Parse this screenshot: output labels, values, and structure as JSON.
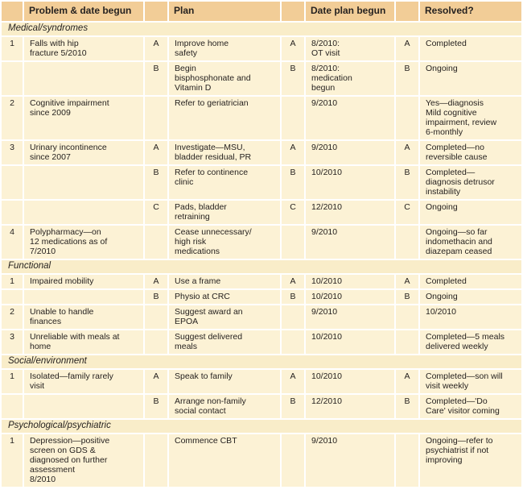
{
  "colors": {
    "header_bg": "#f2cd97",
    "row_bg": "#fcf2d5",
    "section_bg": "#f9edc9",
    "separator": "#ffffff",
    "text": "#262220"
  },
  "table": {
    "headers": {
      "num": "",
      "problem": "Problem & date begun",
      "plan_letter": "",
      "plan": "Plan",
      "date_letter": "",
      "date": "Date plan begun",
      "resolved_letter": "",
      "resolved": "Resolved?"
    },
    "sections": [
      {
        "label": "Medical/syndromes",
        "rows": [
          {
            "num": "1",
            "problem": "Falls with hip\nfracture 5/2010",
            "plan_letter": "A",
            "plan": "Improve home\nsafety",
            "date_letter": "A",
            "date": "8/2010:\nOT visit",
            "resolved_letter": "A",
            "resolved": "Completed"
          },
          {
            "num": "",
            "problem": "",
            "plan_letter": "B",
            "plan": "Begin\nbisphosphonate and\nVitamin D",
            "date_letter": "B",
            "date": "8/2010:\nmedication\nbegun",
            "resolved_letter": "B",
            "resolved": "Ongoing"
          },
          {
            "num": "2",
            "problem": "Cognitive impairment\nsince 2009",
            "plan_letter": "",
            "plan": "Refer to geriatrician",
            "date_letter": "",
            "date": "9/2010",
            "resolved_letter": "",
            "resolved": "Yes—diagnosis\nMild cognitive\nimpairment, review\n6-monthly"
          },
          {
            "num": "3",
            "problem": "Urinary incontinence\nsince 2007",
            "plan_letter": "A",
            "plan": "Investigate—MSU,\nbladder residual, PR",
            "date_letter": "A",
            "date": "9/2010",
            "resolved_letter": "A",
            "resolved": "Completed—no\nreversible cause"
          },
          {
            "num": "",
            "problem": "",
            "plan_letter": "B",
            "plan": "Refer to continence\nclinic",
            "date_letter": "B",
            "date": "10/2010",
            "resolved_letter": "B",
            "resolved": "Completed—\ndiagnosis detrusor\ninstability"
          },
          {
            "num": "",
            "problem": "",
            "plan_letter": "C",
            "plan": "Pads, bladder\nretraining",
            "date_letter": "C",
            "date": "12/2010",
            "resolved_letter": "C",
            "resolved": "Ongoing"
          },
          {
            "num": "4",
            "problem": "Polypharmacy—on\n12 medications as of\n7/2010",
            "plan_letter": "",
            "plan": "Cease unnecessary/\nhigh risk\nmedications",
            "date_letter": "",
            "date": "9/2010",
            "resolved_letter": "",
            "resolved": "Ongoing—so far\nindomethacin and\ndiazepam ceased"
          }
        ]
      },
      {
        "label": "Functional",
        "rows": [
          {
            "num": "1",
            "problem": "Impaired mobility",
            "plan_letter": "A",
            "plan": "Use a frame",
            "date_letter": "A",
            "date": "10/2010",
            "resolved_letter": "A",
            "resolved": "Completed"
          },
          {
            "num": "",
            "problem": "",
            "plan_letter": "B",
            "plan": "Physio at CRC",
            "date_letter": "B",
            "date": "10/2010",
            "resolved_letter": "B",
            "resolved": "Ongoing"
          },
          {
            "num": "2",
            "problem": "Unable to handle\nfinances",
            "plan_letter": "",
            "plan": "Suggest award an\nEPOA",
            "date_letter": "",
            "date": "9/2010",
            "resolved_letter": "",
            "resolved": "10/2010"
          },
          {
            "num": "3",
            "problem": "Unreliable with meals at\nhome",
            "plan_letter": "",
            "plan": "Suggest delivered\nmeals",
            "date_letter": "",
            "date": "10/2010",
            "resolved_letter": "",
            "resolved": "Completed—5 meals\ndelivered weekly"
          }
        ]
      },
      {
        "label": "Social/environment",
        "rows": [
          {
            "num": "1",
            "problem": "Isolated—family rarely\nvisit",
            "plan_letter": "A",
            "plan": "Speak to family",
            "date_letter": "A",
            "date": "10/2010",
            "resolved_letter": "A",
            "resolved": "Completed—son will\nvisit weekly"
          },
          {
            "num": "",
            "problem": "",
            "plan_letter": "B",
            "plan": "Arrange non-family\nsocial contact",
            "date_letter": "B",
            "date": "12/2010",
            "resolved_letter": "B",
            "resolved": "Completed—'Do\nCare' visitor coming"
          }
        ]
      },
      {
        "label": "Psychological/psychiatric",
        "rows": [
          {
            "num": "1",
            "problem": "Depression—positive\nscreen on GDS &\ndiagnosed on further\nassessment\n8/2010",
            "plan_letter": "",
            "plan": "Commence CBT",
            "date_letter": "",
            "date": "9/2010",
            "resolved_letter": "",
            "resolved": "Ongoing—refer to\npsychiatrist if not\nimproving"
          }
        ]
      }
    ]
  }
}
